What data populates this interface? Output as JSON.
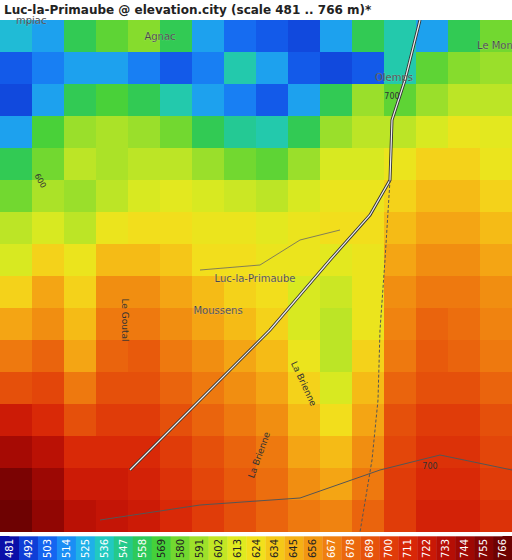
{
  "chart_data": {
    "type": "heatmap",
    "title": "Luc-la-Primaube @ elevation.city (scale 481 .. 766 m)*",
    "tick_labels": false,
    "cells": [
      [
        530,
        520,
        560,
        575,
        585,
        560,
        520,
        505,
        500,
        495,
        520,
        560,
        540,
        520,
        560,
        580
      ],
      [
        500,
        510,
        520,
        520,
        510,
        500,
        510,
        540,
        520,
        500,
        495,
        500,
        540,
        575,
        585,
        590
      ],
      [
        495,
        520,
        560,
        570,
        560,
        540,
        520,
        510,
        500,
        520,
        560,
        590,
        575,
        590,
        600,
        600
      ],
      [
        520,
        570,
        590,
        595,
        590,
        580,
        560,
        545,
        540,
        560,
        590,
        600,
        600,
        610,
        620,
        615
      ],
      [
        560,
        580,
        600,
        595,
        600,
        600,
        590,
        580,
        575,
        590,
        610,
        610,
        620,
        630,
        630,
        620
      ],
      [
        580,
        595,
        590,
        600,
        610,
        615,
        610,
        605,
        600,
        610,
        620,
        620,
        630,
        640,
        640,
        630
      ],
      [
        600,
        610,
        600,
        620,
        625,
        625,
        620,
        620,
        615,
        620,
        625,
        625,
        640,
        650,
        650,
        640
      ],
      [
        610,
        630,
        620,
        640,
        640,
        635,
        625,
        625,
        620,
        620,
        615,
        620,
        650,
        660,
        660,
        650
      ],
      [
        630,
        650,
        630,
        660,
        660,
        650,
        640,
        630,
        625,
        610,
        605,
        620,
        660,
        670,
        670,
        660
      ],
      [
        650,
        660,
        640,
        670,
        670,
        660,
        650,
        640,
        630,
        610,
        600,
        620,
        665,
        680,
        675,
        665
      ],
      [
        670,
        680,
        650,
        680,
        685,
        670,
        660,
        650,
        640,
        620,
        600,
        630,
        670,
        685,
        680,
        670
      ],
      [
        690,
        695,
        670,
        690,
        690,
        680,
        670,
        660,
        650,
        630,
        610,
        640,
        680,
        690,
        690,
        680
      ],
      [
        720,
        710,
        690,
        700,
        700,
        690,
        680,
        670,
        660,
        640,
        625,
        650,
        690,
        700,
        700,
        690
      ],
      [
        740,
        730,
        710,
        710,
        710,
        700,
        690,
        680,
        670,
        650,
        640,
        660,
        695,
        705,
        705,
        695
      ],
      [
        760,
        745,
        720,
        720,
        715,
        705,
        695,
        685,
        675,
        660,
        650,
        670,
        700,
        710,
        710,
        700
      ],
      [
        766,
        750,
        730,
        725,
        720,
        710,
        700,
        690,
        680,
        670,
        665,
        680,
        700,
        715,
        715,
        705
      ]
    ],
    "colorbar": {
      "range": [
        481,
        766
      ],
      "ticks": [
        481,
        492,
        503,
        514,
        525,
        536,
        547,
        558,
        569,
        580,
        591,
        602,
        613,
        624,
        634,
        645,
        656,
        667,
        678,
        689,
        700,
        711,
        722,
        733,
        744,
        755,
        766
      ],
      "colors": [
        "#0a0fa8",
        "#0f3ed6",
        "#1565f0",
        "#1a8ef5",
        "#1fb0e8",
        "#22c9c0",
        "#25c98a",
        "#2ec95a",
        "#45d03a",
        "#72d830",
        "#9ee02a",
        "#c3e625",
        "#e0ea20",
        "#f2e01c",
        "#f5c818",
        "#f5b015",
        "#f29712",
        "#ef7f10",
        "#eb680d",
        "#e6520b",
        "#e03c09",
        "#d82707",
        "#c91806",
        "#b50e05",
        "#9e0804",
        "#860403",
        "#6e0202"
      ]
    }
  },
  "map_labels": {
    "places": [
      "Luc-la-Primaube",
      "Moussens",
      "Agnac",
      "Olemps",
      "Le Mona",
      "mpiac"
    ],
    "rivers": [
      "Le Goutal",
      "La Brienne",
      "La Brienne"
    ],
    "contours": [
      600,
      700,
      700
    ]
  }
}
